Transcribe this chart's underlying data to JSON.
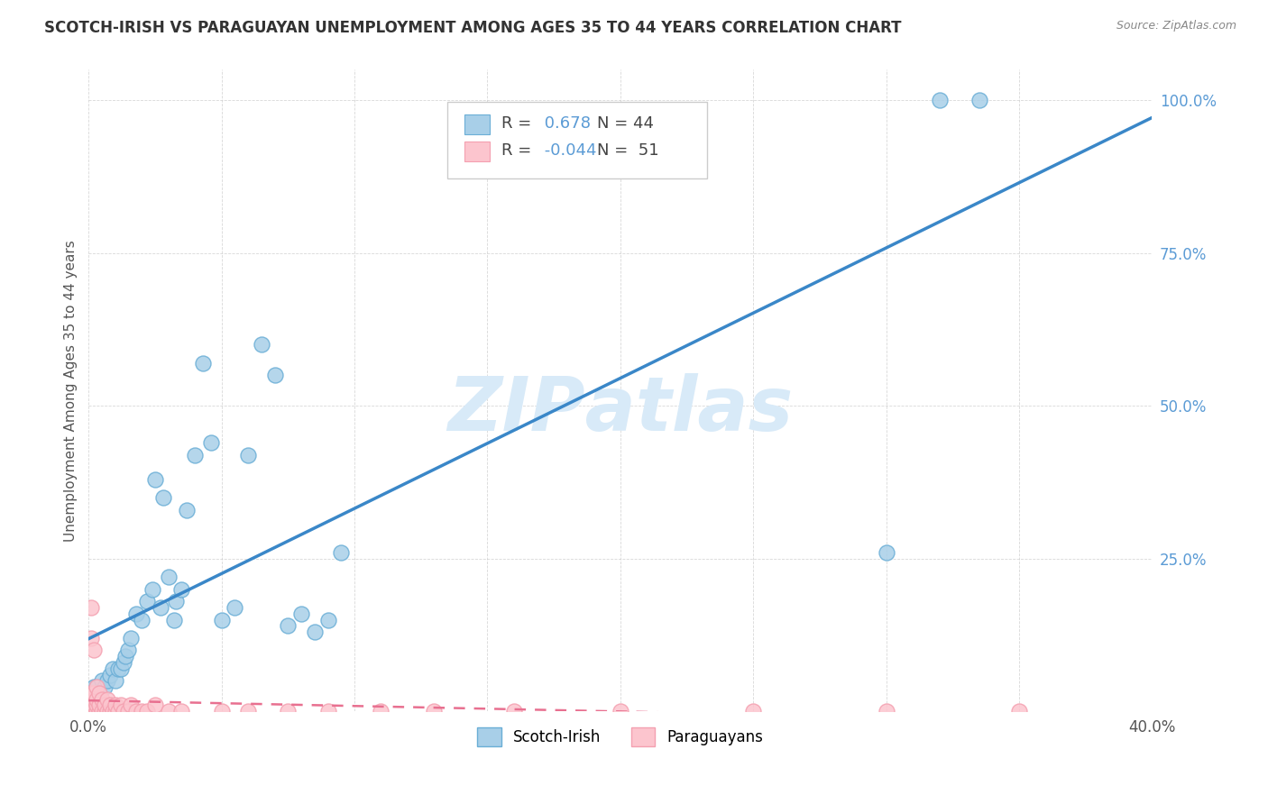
{
  "title": "SCOTCH-IRISH VS PARAGUAYAN UNEMPLOYMENT AMONG AGES 35 TO 44 YEARS CORRELATION CHART",
  "source": "Source: ZipAtlas.com",
  "ylabel": "Unemployment Among Ages 35 to 44 years",
  "xlim": [
    0,
    0.4
  ],
  "ylim": [
    -0.02,
    1.1
  ],
  "plot_ylim": [
    0,
    1.05
  ],
  "xticks": [
    0.0,
    0.05,
    0.1,
    0.15,
    0.2,
    0.25,
    0.3,
    0.35,
    0.4
  ],
  "xtick_labels": [
    "0.0%",
    "",
    "",
    "",
    "",
    "",
    "",
    "",
    "40.0%"
  ],
  "yticks": [
    0.0,
    0.25,
    0.5,
    0.75,
    1.0
  ],
  "ytick_labels": [
    "",
    "25.0%",
    "50.0%",
    "75.0%",
    "100.0%"
  ],
  "scotch_irish_R": 0.678,
  "scotch_irish_N": 44,
  "paraguayan_R": -0.044,
  "paraguayan_N": 51,
  "scotch_irish_color": "#a8cfe8",
  "scotch_irish_edge_color": "#6aaed6",
  "scotch_irish_line_color": "#3a87c8",
  "paraguayan_color": "#fcc5ce",
  "paraguayan_edge_color": "#f4a0b0",
  "paraguayan_line_color": "#e87090",
  "background_color": "#ffffff",
  "grid_color": "#c8c8c8",
  "tick_color": "#5b9bd5",
  "label_color": "#555555",
  "title_color": "#333333",
  "source_color": "#888888",
  "watermark_color": "#d8eaf8",
  "scotch_irish_x": [
    0.001,
    0.002,
    0.003,
    0.004,
    0.005,
    0.006,
    0.007,
    0.008,
    0.009,
    0.01,
    0.011,
    0.012,
    0.013,
    0.014,
    0.015,
    0.016,
    0.018,
    0.02,
    0.022,
    0.024,
    0.025,
    0.027,
    0.028,
    0.03,
    0.032,
    0.033,
    0.035,
    0.037,
    0.04,
    0.043,
    0.046,
    0.05,
    0.055,
    0.06,
    0.065,
    0.07,
    0.075,
    0.08,
    0.085,
    0.09,
    0.095,
    0.3,
    0.32,
    0.335
  ],
  "scotch_irish_y": [
    0.03,
    0.04,
    0.04,
    0.03,
    0.05,
    0.04,
    0.05,
    0.06,
    0.07,
    0.05,
    0.07,
    0.07,
    0.08,
    0.09,
    0.1,
    0.12,
    0.16,
    0.15,
    0.18,
    0.2,
    0.38,
    0.17,
    0.35,
    0.22,
    0.15,
    0.18,
    0.2,
    0.33,
    0.42,
    0.57,
    0.44,
    0.15,
    0.17,
    0.42,
    0.6,
    0.55,
    0.14,
    0.16,
    0.13,
    0.15,
    0.26,
    0.26,
    1.0,
    1.0
  ],
  "paraguayan_x": [
    0.001,
    0.001,
    0.001,
    0.001,
    0.001,
    0.001,
    0.002,
    0.002,
    0.002,
    0.002,
    0.002,
    0.003,
    0.003,
    0.003,
    0.003,
    0.004,
    0.004,
    0.004,
    0.005,
    0.005,
    0.006,
    0.006,
    0.007,
    0.007,
    0.008,
    0.008,
    0.009,
    0.01,
    0.01,
    0.011,
    0.012,
    0.013,
    0.015,
    0.016,
    0.018,
    0.02,
    0.022,
    0.025,
    0.03,
    0.035,
    0.05,
    0.06,
    0.075,
    0.09,
    0.11,
    0.13,
    0.16,
    0.2,
    0.25,
    0.3,
    0.35
  ],
  "paraguayan_y": [
    0.0,
    0.01,
    0.02,
    0.03,
    0.17,
    0.12,
    0.0,
    0.01,
    0.02,
    0.1,
    0.03,
    0.0,
    0.01,
    0.02,
    0.04,
    0.0,
    0.01,
    0.03,
    0.0,
    0.02,
    0.0,
    0.01,
    0.0,
    0.02,
    0.0,
    0.01,
    0.0,
    0.0,
    0.01,
    0.0,
    0.01,
    0.0,
    0.0,
    0.01,
    0.0,
    0.0,
    0.0,
    0.01,
    0.0,
    0.0,
    0.0,
    0.0,
    0.0,
    0.0,
    0.0,
    0.0,
    0.0,
    0.0,
    0.0,
    0.0,
    0.0
  ]
}
